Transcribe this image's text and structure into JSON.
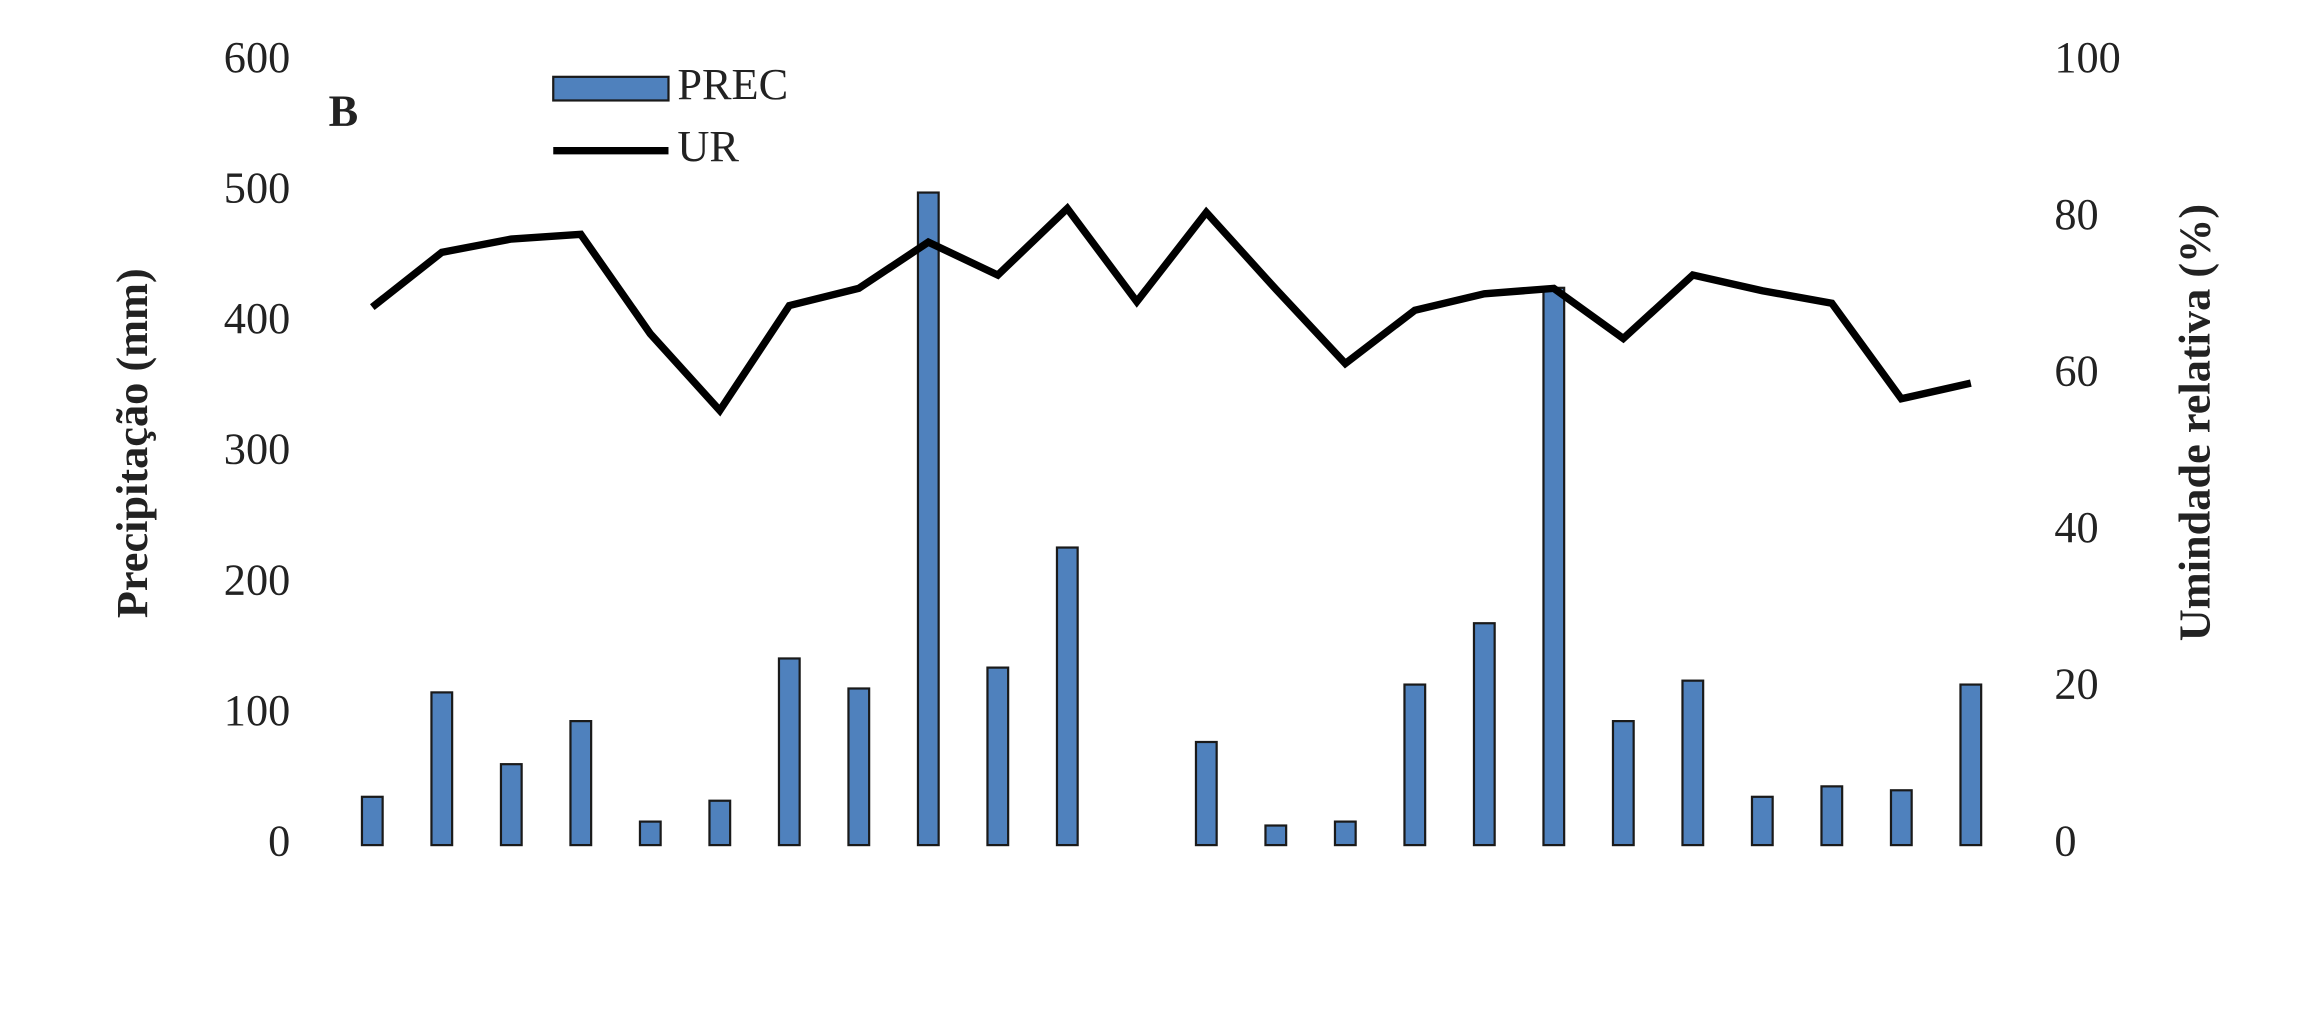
{
  "chart_data": {
    "type": "bar",
    "panel_label": "B",
    "y_label": "Precipitação (mm)",
    "y2_label": "Umindade  relativa (%)",
    "categories": [
      null,
      null,
      null,
      null,
      null,
      null,
      null,
      null,
      null,
      null,
      null,
      null,
      null,
      null,
      null,
      null,
      null,
      null,
      null,
      null,
      null,
      null,
      null,
      null
    ],
    "series": [
      {
        "name": "PREC",
        "type": "bar",
        "color": "#4f81bd",
        "values": [
          37,
          117,
          62,
          95,
          18,
          34,
          143,
          120,
          500,
          136,
          228,
          0,
          79,
          15,
          18,
          123,
          170,
          427,
          95,
          126,
          37,
          45,
          42,
          123
        ]
      },
      {
        "name": "UR",
        "type": "line",
        "axis": "y2",
        "color": "#000000",
        "values": [
          68.7,
          75.7,
          77.4,
          78,
          65.3,
          55.5,
          68.9,
          71.1,
          77,
          72.8,
          81.3,
          69.4,
          80.8,
          71,
          61.5,
          68.3,
          70.4,
          71.1,
          64.7,
          72.8,
          70.8,
          69.2,
          57,
          59
        ]
      }
    ],
    "ylim": [
      0,
      600
    ],
    "yticks": [
      0,
      100,
      200,
      300,
      400,
      500,
      600
    ],
    "y2lim": [
      0,
      100
    ],
    "y2ticks": [
      0,
      20,
      40,
      60,
      80,
      100
    ],
    "legend": "top-left"
  }
}
